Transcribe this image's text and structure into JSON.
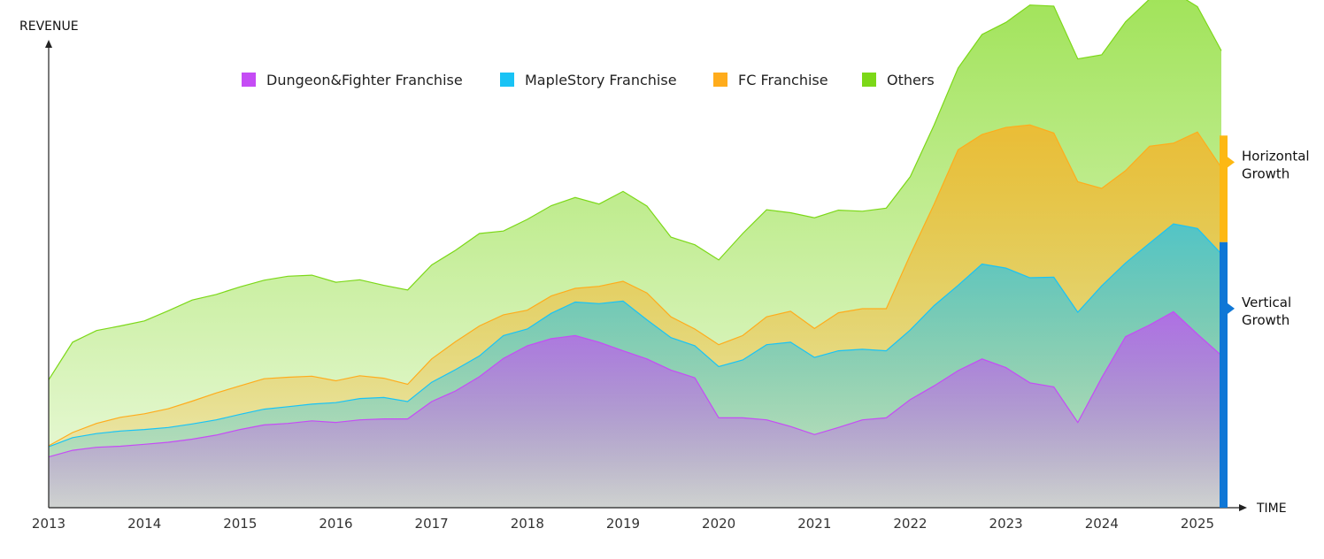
{
  "chart_data": {
    "type": "area",
    "stacked": true,
    "ylabel": "REVENUE",
    "xlabel": "TIME",
    "x_ticks": [
      "2013",
      "2014",
      "2015",
      "2016",
      "2017",
      "2018",
      "2019",
      "2020",
      "2021",
      "2022",
      "2023",
      "2024",
      "2025"
    ],
    "xlim": [
      2013,
      2025.25
    ],
    "ylim": [
      0,
      100
    ],
    "legend_position": "top-center",
    "x": [
      2013.0,
      2013.25,
      2013.5,
      2013.75,
      2014.0,
      2014.25,
      2014.5,
      2014.75,
      2015.0,
      2015.25,
      2015.5,
      2015.75,
      2016.0,
      2016.25,
      2016.5,
      2016.75,
      2017.0,
      2017.25,
      2017.5,
      2017.75,
      2018.0,
      2018.25,
      2018.5,
      2018.75,
      2019.0,
      2019.25,
      2019.5,
      2019.75,
      2020.0,
      2020.25,
      2020.5,
      2020.75,
      2021.0,
      2021.25,
      2021.5,
      2021.75,
      2022.0,
      2022.25,
      2022.5,
      2022.75,
      2023.0,
      2023.25,
      2023.5,
      2023.75,
      2024.0,
      2024.25,
      2024.5,
      2024.75,
      2025.0,
      2025.25
    ],
    "series": [
      {
        "name": "Dungeon&Fighter Franchise",
        "color": "#c54cf5",
        "values": [
          10,
          11.3,
          11.9,
          12.1,
          12.5,
          12.9,
          13.5,
          14.3,
          15.4,
          16.3,
          16.6,
          17.1,
          16.8,
          17.3,
          17.5,
          17.5,
          20.9,
          23,
          25.8,
          29.4,
          31.9,
          33.3,
          33.9,
          32.6,
          30.9,
          29.3,
          27.1,
          25.6,
          17.7,
          17.7,
          17.3,
          16,
          14.4,
          15.8,
          17.3,
          17.7,
          21.3,
          24,
          27,
          29.3,
          27.6,
          24.6,
          23.8,
          16.8,
          25.6,
          33.7,
          36,
          38.6,
          34.2,
          30
        ]
      },
      {
        "name": "MapleStory Franchise",
        "color": "#19c3f5",
        "values": [
          2,
          2.5,
          2.7,
          3,
          2.9,
          2.9,
          3,
          3,
          3,
          3.1,
          3.3,
          3.3,
          3.9,
          4.2,
          4.2,
          3.4,
          3.8,
          4.2,
          4.1,
          4.5,
          3.3,
          5,
          6.6,
          7.6,
          9.8,
          7.7,
          6.4,
          6.3,
          10.1,
          11.4,
          14.8,
          16.6,
          15.2,
          15.1,
          13.9,
          13.2,
          13.7,
          15.8,
          16.8,
          18.7,
          19.6,
          20.7,
          21.6,
          21.7,
          18.1,
          14.5,
          16.1,
          17.3,
          20.8,
          20
        ]
      },
      {
        "name": "FC Franchise",
        "color": "#ffac1c",
        "values": [
          0.2,
          1,
          2,
          2.7,
          3.1,
          3.7,
          4.5,
          5.3,
          5.6,
          6,
          5.8,
          5.5,
          4.3,
          4.5,
          3.8,
          3.4,
          4.6,
          5.5,
          5.9,
          4.1,
          3.7,
          3.4,
          2.7,
          3.4,
          3.9,
          5.3,
          4.1,
          3.3,
          4.3,
          4.8,
          5.5,
          6.1,
          5.7,
          7.5,
          8,
          8.3,
          14.8,
          20,
          26.7,
          25.5,
          27.7,
          30.1,
          28.4,
          25.7,
          19.2,
          18.2,
          19.1,
          15.9,
          19,
          17
        ]
      },
      {
        "name": "Others",
        "color": "#7cd818",
        "values": [
          13,
          17.8,
          18.3,
          18,
          18.3,
          19.3,
          19.9,
          19.4,
          19.5,
          19.4,
          19.9,
          19.9,
          19.4,
          18.9,
          18.3,
          18.6,
          18.5,
          18,
          18.2,
          16.5,
          17.9,
          17.8,
          17.9,
          16.2,
          17.7,
          17.1,
          15.7,
          16.6,
          16.7,
          20.1,
          21.1,
          19.4,
          21.8,
          20.2,
          19.2,
          19.8,
          15.4,
          15.6,
          16.1,
          19.7,
          20.7,
          23.6,
          25,
          24.2,
          26.3,
          29.3,
          29,
          29.8,
          24.7,
          23
        ]
      }
    ],
    "annotations": [
      {
        "label_lines": [
          "Horizontal",
          "Growth"
        ],
        "color": "#fdb813",
        "from": 52.3,
        "to": 73.3
      },
      {
        "label_lines": [
          "Vertical",
          "Growth"
        ],
        "color": "#0f77d6",
        "from": 0,
        "to": 52.3
      }
    ]
  }
}
